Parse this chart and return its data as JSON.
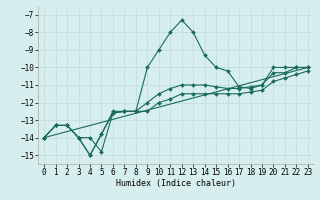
{
  "bg_color": "#d6eeee",
  "grid_color": "#c4dddd",
  "line_color": "#1a6b5a",
  "xlabel": "Humidex (Indice chaleur)",
  "ylim": [
    -15.5,
    -6.5
  ],
  "xlim": [
    -0.5,
    23.5
  ],
  "yticks": [
    -15,
    -14,
    -13,
    -12,
    -11,
    -10,
    -9,
    -8,
    -7
  ],
  "xticks": [
    0,
    1,
    2,
    3,
    4,
    5,
    6,
    7,
    8,
    9,
    10,
    11,
    12,
    13,
    14,
    15,
    16,
    17,
    18,
    19,
    20,
    21,
    22,
    23
  ],
  "series1_x": [
    0,
    1,
    2,
    3,
    4,
    5,
    6,
    7,
    8,
    9,
    10,
    11,
    12,
    13,
    14,
    15,
    16,
    17,
    18,
    19,
    20,
    21,
    22,
    23
  ],
  "series1_y": [
    -14.0,
    -13.3,
    -13.3,
    -14.0,
    -14.0,
    -14.8,
    -12.6,
    -12.5,
    -12.5,
    -10.0,
    -9.0,
    -8.0,
    -7.3,
    -8.0,
    -9.3,
    -10.0,
    -10.2,
    -11.1,
    -11.2,
    -11.0,
    -10.0,
    -10.0,
    -10.0,
    -10.0
  ],
  "series2_x": [
    0,
    1,
    2,
    3,
    4,
    5,
    6,
    7,
    8,
    9,
    10,
    11,
    12,
    13,
    14,
    15,
    16,
    17,
    18,
    19,
    20,
    21,
    22,
    23
  ],
  "series2_y": [
    -14.0,
    -13.3,
    -13.3,
    -14.0,
    -15.0,
    -13.8,
    -12.5,
    -12.5,
    -12.5,
    -12.0,
    -11.5,
    -11.2,
    -11.0,
    -11.0,
    -11.0,
    -11.1,
    -11.2,
    -11.2,
    -11.1,
    -11.0,
    -10.3,
    -10.3,
    -10.0,
    -10.0
  ],
  "series3_x": [
    0,
    1,
    2,
    3,
    4,
    5,
    6,
    7,
    8,
    9,
    10,
    11,
    12,
    13,
    14,
    15,
    16,
    17,
    18,
    19,
    20,
    21,
    22,
    23
  ],
  "series3_y": [
    -14.0,
    -13.3,
    -13.3,
    -14.0,
    -15.0,
    -13.8,
    -12.6,
    -12.5,
    -12.5,
    -12.5,
    -12.0,
    -11.8,
    -11.5,
    -11.5,
    -11.5,
    -11.5,
    -11.5,
    -11.5,
    -11.4,
    -11.3,
    -10.8,
    -10.6,
    -10.4,
    -10.2
  ],
  "series4_x": [
    0,
    23
  ],
  "series4_y": [
    -14.0,
    -10.0
  ],
  "tick_fontsize": 5.5,
  "xlabel_fontsize": 6.0,
  "lw": 0.8,
  "ms": 2.0
}
